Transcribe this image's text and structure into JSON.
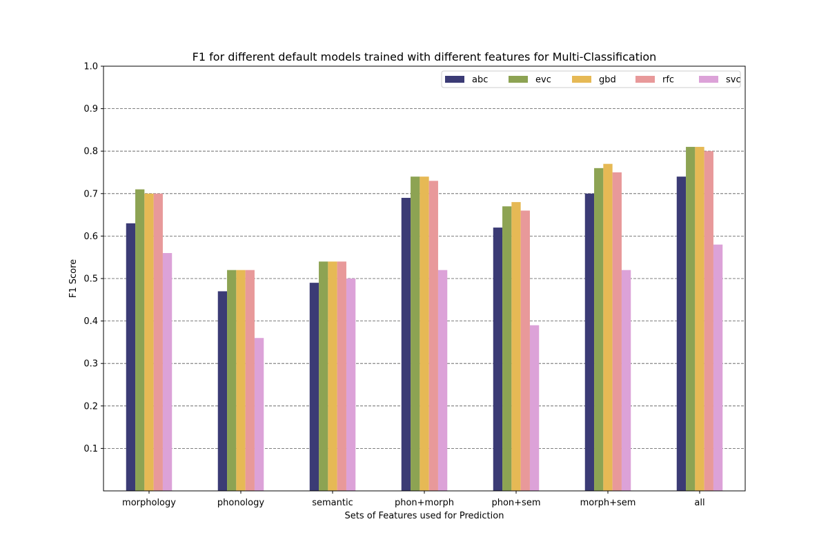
{
  "chart_data": {
    "type": "bar",
    "title": "F1 for different default models trained with different features for Multi-Classification",
    "xlabel": "Sets of Features used for Prediction",
    "ylabel": "F1 Score",
    "ylim": [
      0,
      1.0
    ],
    "yticks": [
      "0.1",
      "0.2",
      "0.3",
      "0.4",
      "0.5",
      "0.6",
      "0.7",
      "0.8",
      "0.9",
      "1.0"
    ],
    "grid": "horizontal-dashed",
    "legend_position": "top-right",
    "categories": [
      "morphology",
      "phonology",
      "semantic",
      "phon+morph",
      "phon+sem",
      "morph+sem",
      "all"
    ],
    "series": [
      {
        "name": "abc",
        "color": "#3b3b75",
        "values": [
          0.63,
          0.47,
          0.49,
          0.69,
          0.62,
          0.7,
          0.74
        ]
      },
      {
        "name": "evc",
        "color": "#8da353",
        "values": [
          0.71,
          0.52,
          0.54,
          0.74,
          0.67,
          0.76,
          0.81
        ]
      },
      {
        "name": "gbd",
        "color": "#e6b955",
        "values": [
          0.7,
          0.52,
          0.54,
          0.74,
          0.68,
          0.77,
          0.81
        ]
      },
      {
        "name": "rfc",
        "color": "#e8999a",
        "values": [
          0.7,
          0.52,
          0.54,
          0.73,
          0.66,
          0.75,
          0.8
        ]
      },
      {
        "name": "svc",
        "color": "#dca2d8",
        "values": [
          0.56,
          0.36,
          0.5,
          0.52,
          0.39,
          0.52,
          0.58
        ]
      }
    ]
  }
}
